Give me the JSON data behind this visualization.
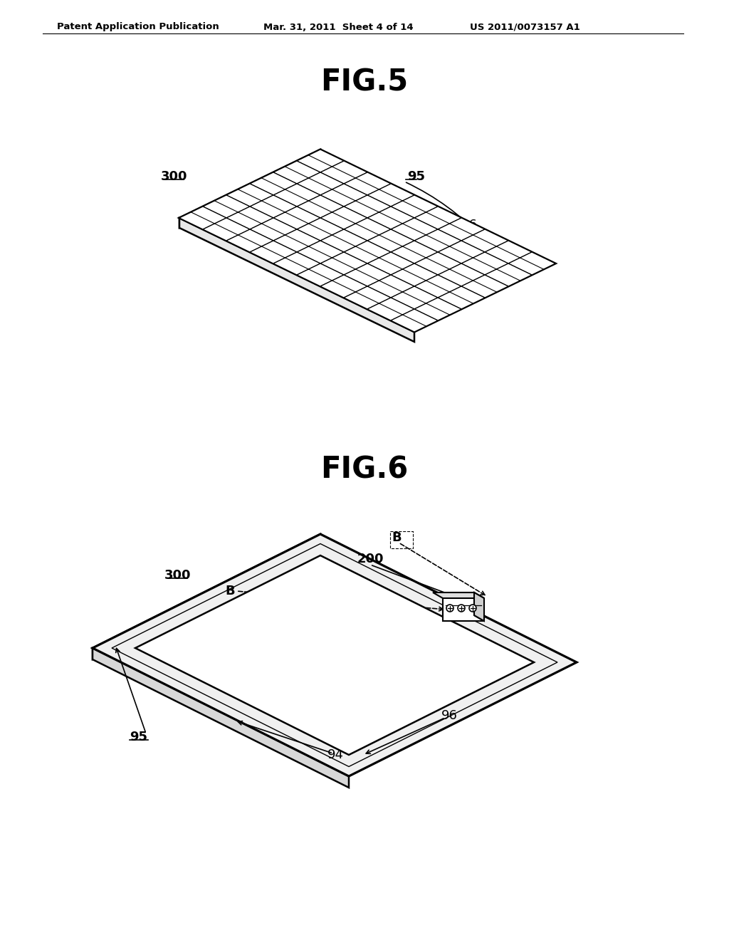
{
  "bg_color": "#ffffff",
  "header_text": "Patent Application Publication",
  "header_date": "Mar. 31, 2011  Sheet 4 of 14",
  "header_patent": "US 2011/0073157 A1",
  "fig5_title": "FIG.5",
  "fig6_title": "FIG.6",
  "line_color": "#000000",
  "line_width": 1.8,
  "thin_line": 1.0
}
